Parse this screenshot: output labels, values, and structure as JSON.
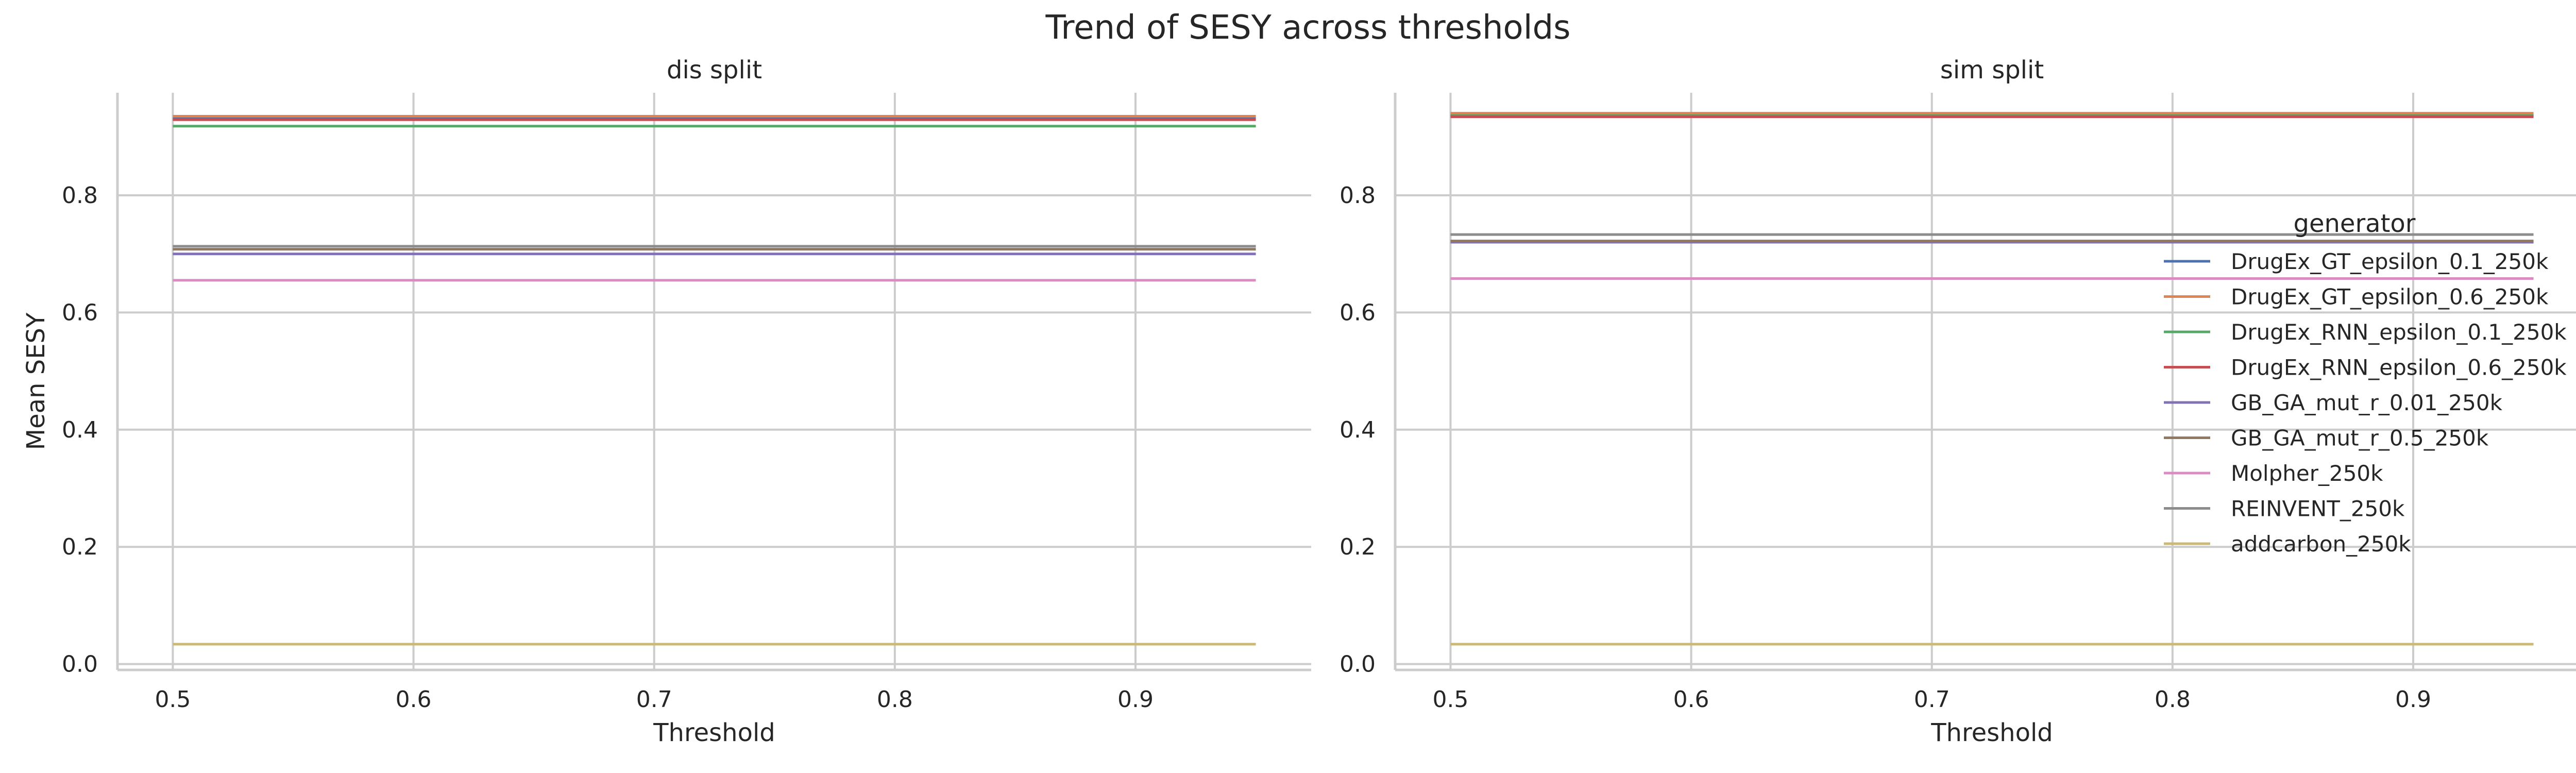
{
  "chart_data": {
    "type": "line",
    "title": "Trend of SESY across thresholds",
    "x_ticks": [
      0.5,
      0.6,
      0.7,
      0.8,
      0.9
    ],
    "y_ticks": [
      0.0,
      0.2,
      0.4,
      0.6,
      0.8
    ],
    "xlim": [
      0.477,
      0.973
    ],
    "ylim": [
      -0.01,
      0.975
    ],
    "xlabel": "Threshold",
    "ylabel": "Mean SESY",
    "grid": true,
    "legend": {
      "title": "generator",
      "placement": "right"
    },
    "panels": [
      {
        "title": "dis split",
        "series": [
          {
            "name": "DrugEx_GT_epsilon_0.1_250k",
            "color": "#4c72b0",
            "x": [
              0.5,
              0.95
            ],
            "y": [
              0.932,
              0.932
            ]
          },
          {
            "name": "DrugEx_GT_epsilon_0.6_250k",
            "color": "#dd8452",
            "x": [
              0.5,
              0.95
            ],
            "y": [
              0.935,
              0.935
            ]
          },
          {
            "name": "DrugEx_RNN_epsilon_0.1_250k",
            "color": "#55a868",
            "x": [
              0.5,
              0.95
            ],
            "y": [
              0.918,
              0.918
            ]
          },
          {
            "name": "DrugEx_RNN_epsilon_0.6_250k",
            "color": "#c44e52",
            "x": [
              0.5,
              0.95
            ],
            "y": [
              0.929,
              0.929
            ]
          },
          {
            "name": "GB_GA_mut_r_0.01_250k",
            "color": "#8172b3",
            "x": [
              0.5,
              0.95
            ],
            "y": [
              0.7,
              0.7
            ]
          },
          {
            "name": "GB_GA_mut_r_0.5_250k",
            "color": "#937860",
            "x": [
              0.5,
              0.95
            ],
            "y": [
              0.708,
              0.708
            ]
          },
          {
            "name": "Molpher_250k",
            "color": "#da8bc3",
            "x": [
              0.5,
              0.95
            ],
            "y": [
              0.655,
              0.655
            ]
          },
          {
            "name": "REINVENT_250k",
            "color": "#8c8c8c",
            "x": [
              0.5,
              0.95
            ],
            "y": [
              0.713,
              0.713
            ]
          },
          {
            "name": "addcarbon_250k",
            "color": "#ccb974",
            "x": [
              0.5,
              0.95
            ],
            "y": [
              0.034,
              0.034
            ]
          }
        ]
      },
      {
        "title": "sim split",
        "series": [
          {
            "name": "DrugEx_GT_epsilon_0.1_250k",
            "color": "#4c72b0",
            "x": [
              0.5,
              0.95
            ],
            "y": [
              0.937,
              0.937
            ]
          },
          {
            "name": "DrugEx_GT_epsilon_0.6_250k",
            "color": "#dd8452",
            "x": [
              0.5,
              0.95
            ],
            "y": [
              0.94,
              0.94
            ]
          },
          {
            "name": "DrugEx_RNN_epsilon_0.1_250k",
            "color": "#55a868",
            "x": [
              0.5,
              0.95
            ],
            "y": [
              0.936,
              0.936
            ]
          },
          {
            "name": "DrugEx_RNN_epsilon_0.6_250k",
            "color": "#c44e52",
            "x": [
              0.5,
              0.95
            ],
            "y": [
              0.934,
              0.934
            ]
          },
          {
            "name": "GB_GA_mut_r_0.01_250k",
            "color": "#8172b3",
            "x": [
              0.5,
              0.95
            ],
            "y": [
              0.72,
              0.72
            ]
          },
          {
            "name": "GB_GA_mut_r_0.5_250k",
            "color": "#937860",
            "x": [
              0.5,
              0.95
            ],
            "y": [
              0.722,
              0.722
            ]
          },
          {
            "name": "Molpher_250k",
            "color": "#da8bc3",
            "x": [
              0.5,
              0.95
            ],
            "y": [
              0.658,
              0.658
            ]
          },
          {
            "name": "REINVENT_250k",
            "color": "#8c8c8c",
            "x": [
              0.5,
              0.95
            ],
            "y": [
              0.733,
              0.733
            ]
          },
          {
            "name": "addcarbon_250k",
            "color": "#ccb974",
            "x": [
              0.5,
              0.95
            ],
            "y": [
              0.034,
              0.034
            ]
          }
        ]
      }
    ]
  }
}
